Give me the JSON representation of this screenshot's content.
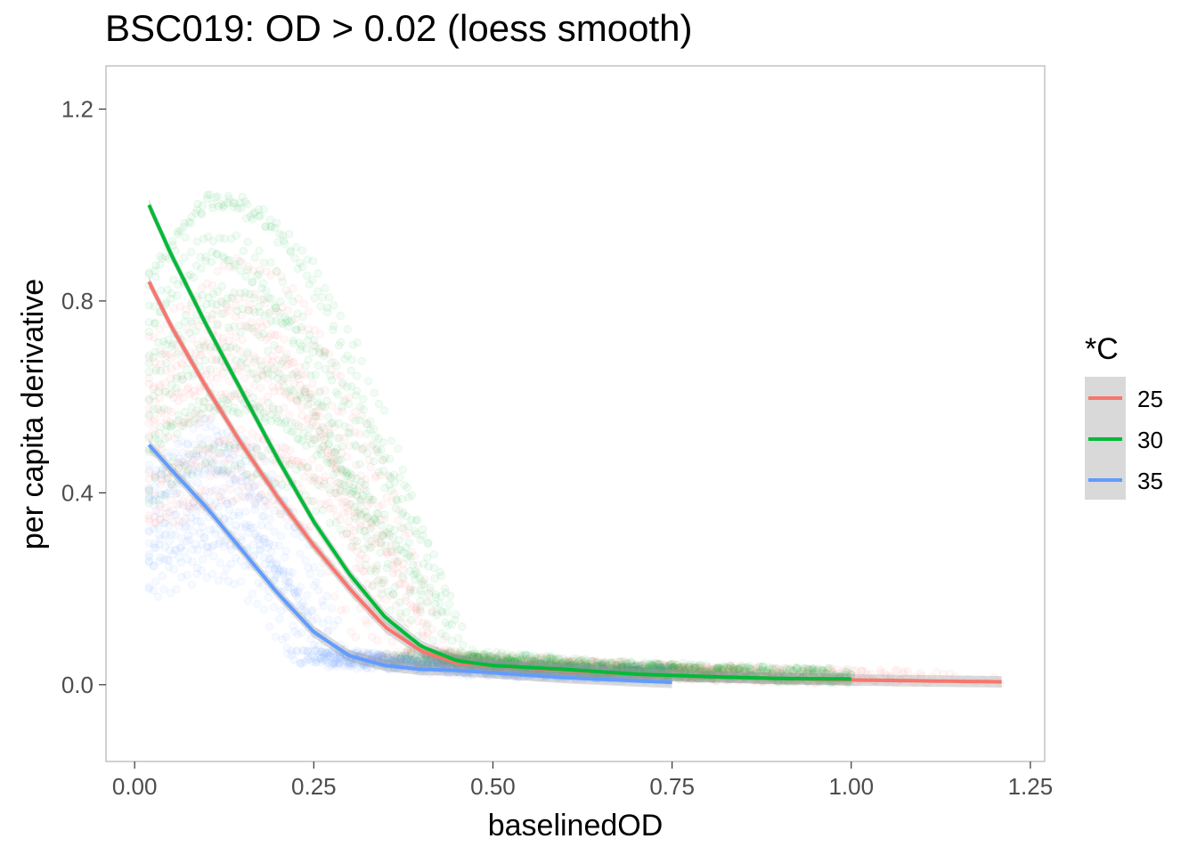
{
  "chart_data": {
    "type": "scatter",
    "title": "BSC019: OD > 0.02 (loess smooth)",
    "xlabel": "baselinedOD",
    "ylabel": "per capita derivative",
    "xlim": [
      -0.04,
      1.27
    ],
    "ylim": [
      -0.16,
      1.29
    ],
    "x_ticks": [
      0.0,
      0.25,
      0.5,
      0.75,
      1.0,
      1.25
    ],
    "x_tick_labels": [
      "0.00",
      "0.25",
      "0.50",
      "0.75",
      "1.00",
      "1.25"
    ],
    "y_ticks": [
      0.0,
      0.4,
      0.8,
      1.2
    ],
    "y_tick_labels": [
      "0.0",
      "0.4",
      "0.8",
      "1.2"
    ],
    "grid": false,
    "legend": {
      "title": "*C",
      "placement": "right"
    },
    "series": [
      {
        "name": "25",
        "color": "#F8766D",
        "smooth": {
          "x": [
            0.02,
            0.05,
            0.1,
            0.15,
            0.2,
            0.25,
            0.3,
            0.35,
            0.4,
            0.45,
            0.5,
            0.6,
            0.7,
            0.8,
            0.9,
            1.0,
            1.1,
            1.21
          ],
          "y": [
            0.84,
            0.75,
            0.62,
            0.5,
            0.39,
            0.29,
            0.2,
            0.12,
            0.07,
            0.045,
            0.04,
            0.03,
            0.022,
            0.017,
            0.013,
            0.01,
            0.008,
            0.006
          ]
        },
        "points": {
          "x_range": [
            0.02,
            1.21
          ],
          "y_peak": 0.85,
          "peak_at": 0.14,
          "knee": 0.36
        }
      },
      {
        "name": "30",
        "color": "#00BA38",
        "smooth": {
          "x": [
            0.02,
            0.05,
            0.1,
            0.15,
            0.2,
            0.25,
            0.3,
            0.35,
            0.4,
            0.45,
            0.5,
            0.6,
            0.7,
            0.8,
            0.9,
            1.0
          ],
          "y": [
            1.0,
            0.9,
            0.75,
            0.61,
            0.47,
            0.34,
            0.23,
            0.14,
            0.08,
            0.05,
            0.04,
            0.032,
            0.022,
            0.017,
            0.013,
            0.012
          ]
        },
        "points": {
          "x_range": [
            0.02,
            1.0
          ],
          "y_peak": 1.05,
          "peak_at": 0.1,
          "knee": 0.4
        }
      },
      {
        "name": "35",
        "color": "#619CFF",
        "smooth": {
          "x": [
            0.02,
            0.05,
            0.1,
            0.15,
            0.2,
            0.25,
            0.3,
            0.35,
            0.4,
            0.45,
            0.5,
            0.6,
            0.7,
            0.75
          ],
          "y": [
            0.5,
            0.45,
            0.37,
            0.28,
            0.19,
            0.11,
            0.06,
            0.04,
            0.032,
            0.03,
            0.025,
            0.015,
            0.008,
            0.005
          ]
        },
        "points": {
          "x_range": [
            0.02,
            0.75
          ],
          "y_peak": 0.55,
          "peak_at": 0.1,
          "knee": 0.25
        }
      }
    ]
  }
}
